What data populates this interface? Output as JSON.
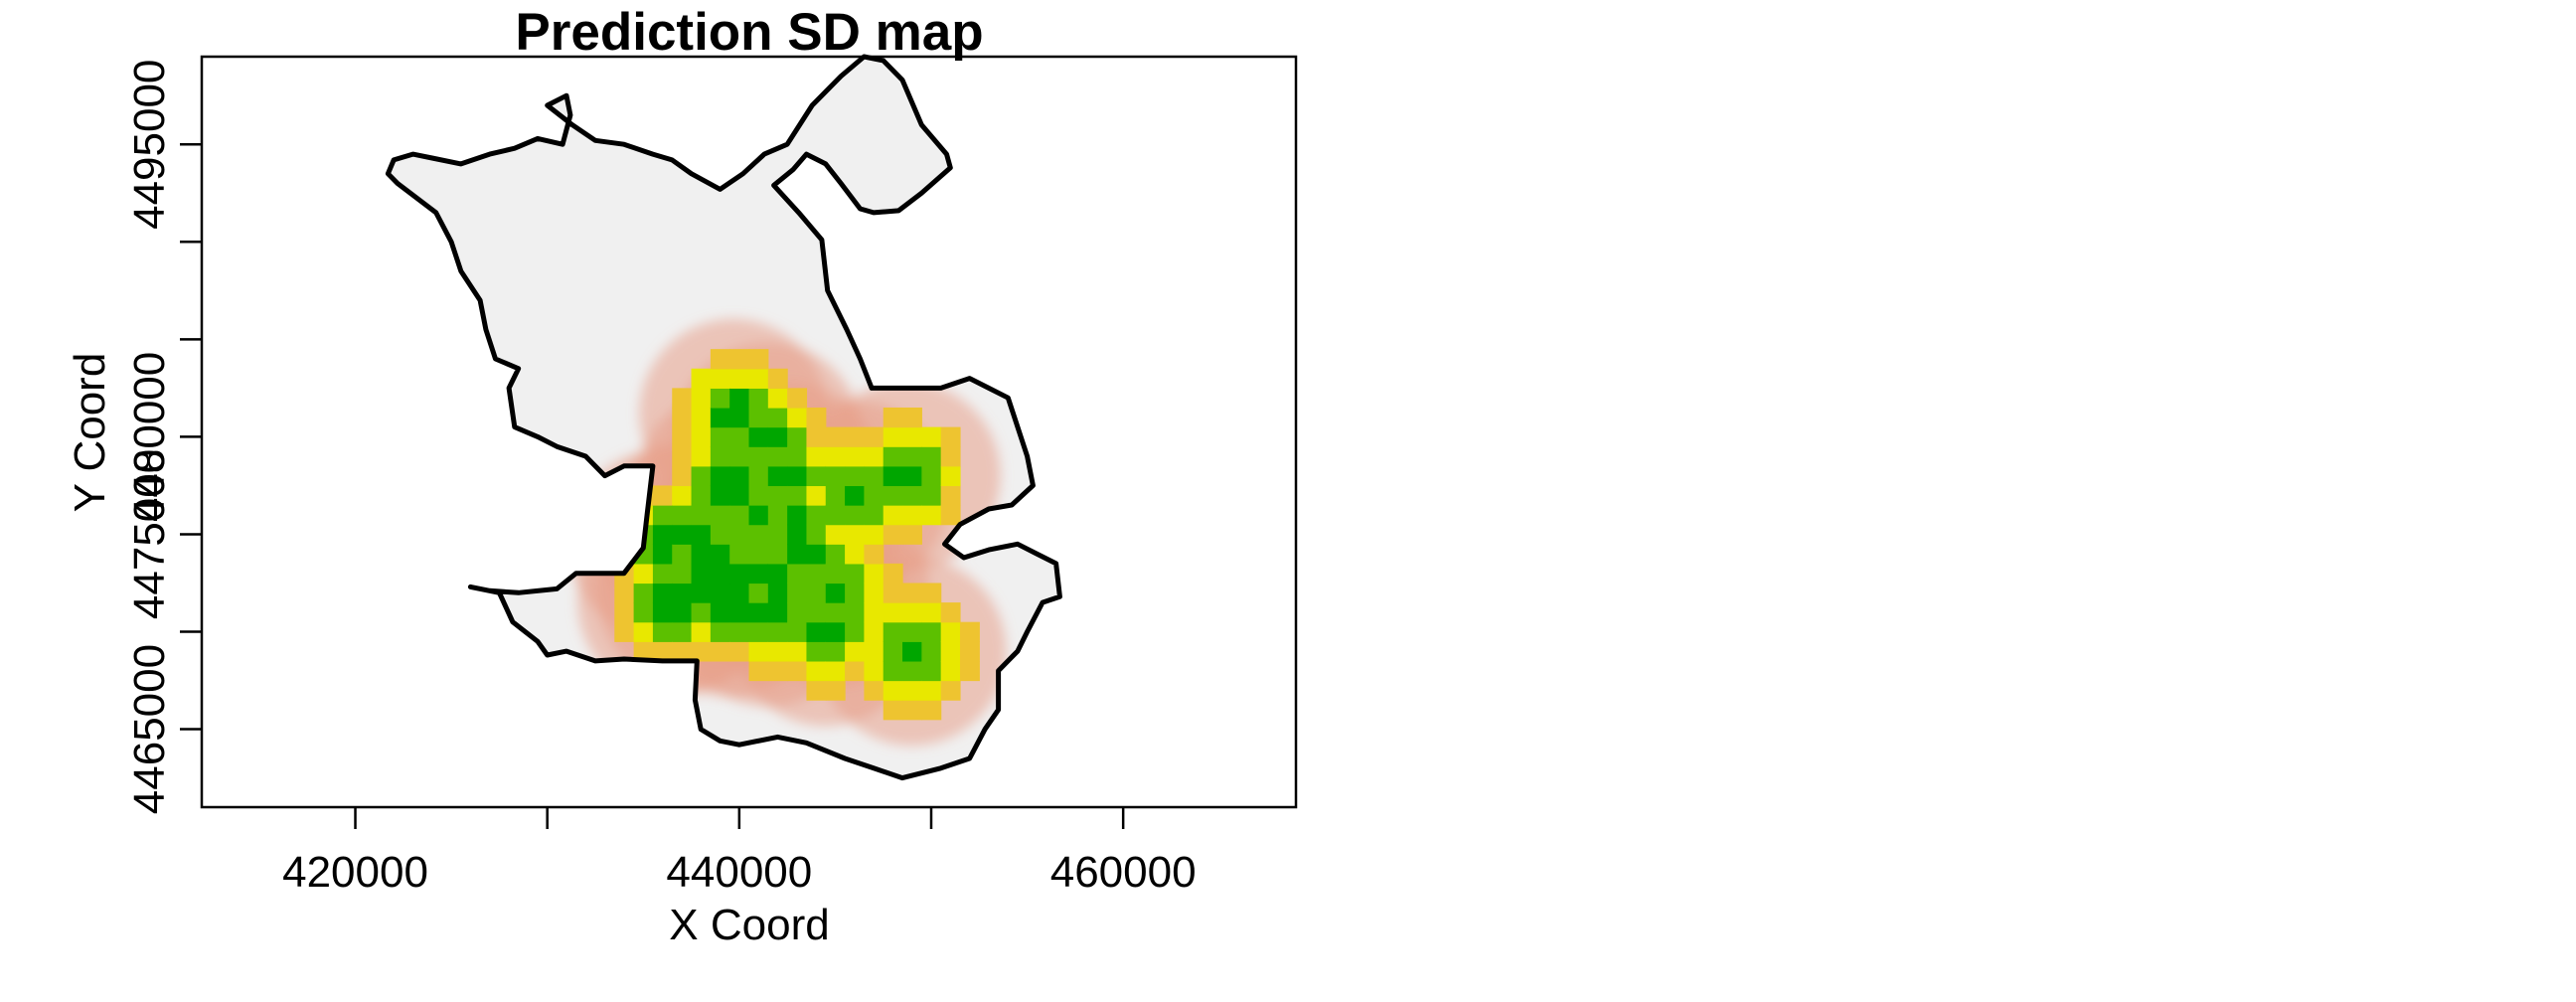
{
  "chart_data": {
    "type": "heatmap",
    "title": "Prediction SD map",
    "xlabel": "X Coord",
    "ylabel": "Y Coord",
    "xlim": [
      412000,
      469000
    ],
    "ylim": [
      4461000,
      4499500
    ],
    "x_ticks": [
      {
        "value": 420000,
        "label": "420000"
      },
      {
        "value": 430000,
        "label": ""
      },
      {
        "value": 440000,
        "label": "440000"
      },
      {
        "value": 450000,
        "label": ""
      },
      {
        "value": 460000,
        "label": "460000"
      }
    ],
    "y_ticks": [
      {
        "value": 4465000,
        "label": "4465000"
      },
      {
        "value": 4470000,
        "label": ""
      },
      {
        "value": 4475000,
        "label": "4475000"
      },
      {
        "value": 4480000,
        "label": "4480000"
      },
      {
        "value": 4485000,
        "label": ""
      },
      {
        "value": 4490000,
        "label": ""
      },
      {
        "value": 4495000,
        "label": "4495000"
      }
    ],
    "colors": {
      "high": "#f0f0f0",
      "mid": "#e8a18b",
      "low_mid": "#e8e800",
      "low": "#00a600",
      "boundary": "#000000"
    },
    "grid": false,
    "legend": "none",
    "low_sd_centers": [
      [
        439700,
        4481200
      ],
      [
        441500,
        4480000
      ],
      [
        442500,
        4478000
      ],
      [
        439500,
        4477500
      ],
      [
        441000,
        4476000
      ],
      [
        443000,
        4475500
      ],
      [
        437500,
        4475000
      ],
      [
        436000,
        4474500
      ],
      [
        438500,
        4473500
      ],
      [
        440500,
        4473000
      ],
      [
        442000,
        4472500
      ],
      [
        437500,
        4472000
      ],
      [
        439500,
        4471500
      ],
      [
        445000,
        4472000
      ],
      [
        444500,
        4470000
      ],
      [
        446000,
        4477000
      ],
      [
        448700,
        4478000
      ],
      [
        449000,
        4469000
      ],
      [
        436500,
        4471500
      ],
      [
        441500,
        4471000
      ],
      [
        443500,
        4474000
      ]
    ],
    "boundary": [
      [
        447500,
        4499300
      ],
      [
        448500,
        4498300
      ],
      [
        449500,
        4496000
      ],
      [
        450800,
        4494500
      ],
      [
        451000,
        4493800
      ],
      [
        449500,
        4492500
      ],
      [
        448300,
        4491600
      ],
      [
        447000,
        4491500
      ],
      [
        446300,
        4491700
      ],
      [
        445300,
        4493000
      ],
      [
        444500,
        4494000
      ],
      [
        443500,
        4494500
      ],
      [
        442800,
        4493700
      ],
      [
        441800,
        4492900
      ],
      [
        443100,
        4491500
      ],
      [
        444300,
        4490100
      ],
      [
        444600,
        4487500
      ],
      [
        445600,
        4485500
      ],
      [
        446300,
        4484000
      ],
      [
        446900,
        4482500
      ],
      [
        448500,
        4482500
      ],
      [
        450500,
        4482500
      ],
      [
        452000,
        4483000
      ],
      [
        453000,
        4482500
      ],
      [
        454000,
        4482000
      ],
      [
        455000,
        4479000
      ],
      [
        455300,
        4477500
      ],
      [
        454200,
        4476500
      ],
      [
        453000,
        4476300
      ],
      [
        451500,
        4475500
      ],
      [
        450700,
        4474500
      ],
      [
        451700,
        4473800
      ],
      [
        453000,
        4474200
      ],
      [
        454500,
        4474500
      ],
      [
        455500,
        4474000
      ],
      [
        456500,
        4473500
      ],
      [
        456700,
        4471800
      ],
      [
        455800,
        4471500
      ],
      [
        455000,
        4470000
      ],
      [
        454500,
        4469000
      ],
      [
        453500,
        4468000
      ],
      [
        453500,
        4466000
      ],
      [
        452800,
        4465000
      ],
      [
        452000,
        4463500
      ],
      [
        450500,
        4463000
      ],
      [
        448500,
        4462500
      ],
      [
        447000,
        4463000
      ],
      [
        445500,
        4463500
      ],
      [
        443500,
        4464300
      ],
      [
        442000,
        4464600
      ],
      [
        440000,
        4464200
      ],
      [
        439000,
        4464400
      ],
      [
        438000,
        4465000
      ],
      [
        437700,
        4466500
      ],
      [
        437800,
        4468500
      ],
      [
        436000,
        4468500
      ],
      [
        434000,
        4468600
      ],
      [
        432500,
        4468500
      ],
      [
        431000,
        4469000
      ],
      [
        430000,
        4468800
      ],
      [
        429500,
        4469500
      ],
      [
        428200,
        4470500
      ],
      [
        427500,
        4472000
      ],
      [
        426000,
        4472300
      ],
      [
        427000,
        4472100
      ],
      [
        428500,
        4472000
      ],
      [
        430500,
        4472200
      ],
      [
        431500,
        4473000
      ],
      [
        434000,
        4473000
      ],
      [
        435000,
        4474300
      ],
      [
        435200,
        4476000
      ],
      [
        435500,
        4478500
      ],
      [
        434000,
        4478500
      ],
      [
        433000,
        4478000
      ],
      [
        432000,
        4479000
      ],
      [
        430500,
        4479500
      ],
      [
        429500,
        4480000
      ],
      [
        428300,
        4480500
      ],
      [
        428000,
        4482500
      ],
      [
        428500,
        4483500
      ],
      [
        427300,
        4484000
      ],
      [
        426800,
        4485500
      ],
      [
        426500,
        4487000
      ],
      [
        425500,
        4488500
      ],
      [
        425000,
        4490000
      ],
      [
        424200,
        4491500
      ],
      [
        422200,
        4493000
      ],
      [
        421700,
        4493500
      ],
      [
        422000,
        4494200
      ],
      [
        423000,
        4494500
      ],
      [
        424000,
        4494300
      ],
      [
        425500,
        4494000
      ],
      [
        427000,
        4494500
      ],
      [
        428300,
        4494800
      ],
      [
        429500,
        4495300
      ],
      [
        430800,
        4495000
      ],
      [
        431200,
        4496500
      ],
      [
        431000,
        4497500
      ],
      [
        430000,
        4497000
      ],
      [
        431300,
        4496000
      ],
      [
        432500,
        4495200
      ],
      [
        434000,
        4495000
      ],
      [
        435500,
        4494500
      ],
      [
        436500,
        4494200
      ],
      [
        437500,
        4493500
      ],
      [
        439000,
        4492700
      ],
      [
        440200,
        4493500
      ],
      [
        441300,
        4494500
      ],
      [
        442500,
        4495000
      ],
      [
        443800,
        4497000
      ],
      [
        445300,
        4498500
      ],
      [
        446500,
        4499500
      ]
    ]
  }
}
